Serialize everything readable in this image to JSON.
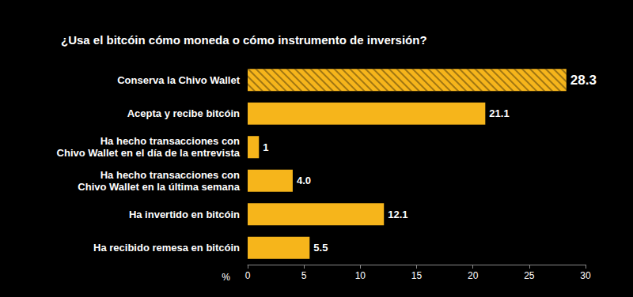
{
  "chart_data": {
    "type": "bar",
    "orientation": "horizontal",
    "title": "¿Usa el bitcóin cómo moneda o cómo instrumento de inversión?",
    "categories": [
      "Conserva la Chivo Wallet",
      "Acepta y recibe bitcóin",
      "Ha hecho transacciones con\nChivo Wallet en el día de la entrevista",
      "Ha hecho transacciones con\nChivo Wallet en la última semana",
      "Ha invertido en bitcóin",
      "Ha recibido remesa en bitcóin"
    ],
    "values": [
      28.3,
      21.1,
      1,
      4.0,
      12.1,
      5.5
    ],
    "value_labels": [
      "28.3",
      "21.1",
      "1",
      "4.0",
      "12.1",
      "5.5"
    ],
    "data_labels": true,
    "color": "#f6b51b",
    "xlabel": "%",
    "xlim": [
      0,
      30
    ],
    "xticks": [
      0,
      5,
      10,
      15,
      20,
      25,
      30
    ],
    "grid": false
  }
}
